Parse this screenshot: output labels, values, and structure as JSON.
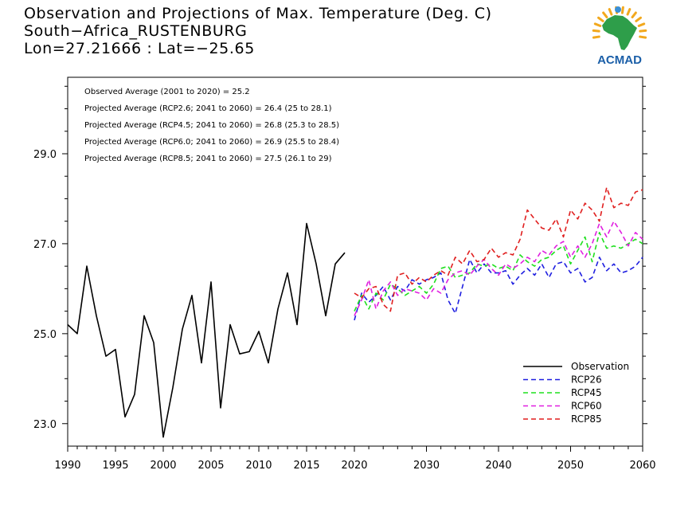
{
  "header": {
    "title_line1": "Observation and Projections of Max. Temperature (Deg. C)",
    "title_line2": "South−Africa_RUSTENBURG",
    "title_line3": "Lon=27.21666 : Lat=−25.65"
  },
  "logo": {
    "text": "ACMAD",
    "colors": {
      "africa": "#2e9e4a",
      "sun": "#f2a81d",
      "text": "#1b5fa8"
    }
  },
  "stats": [
    "Observed Average (2001 to 2020) = 25.2",
    "Projected Average (RCP2.6; 2041 to 2060) = 26.4 (25 to 28.1)",
    "Projected Average (RCP4.5; 2041 to 2060) = 26.8 (25.3 to 28.5)",
    "Projected Average (RCP6.0; 2041 to 2060) = 26.9 (25.5 to 28.4)",
    "Projected Average (RCP8.5; 2041 to 2060) = 27.5 (26.1 to 29)"
  ],
  "chart_data": {
    "type": "line",
    "title": "Observation and Projections of Max. Temperature (Deg. C)",
    "xlim": [
      1990,
      2060
    ],
    "ylim": [
      22.5,
      30.7
    ],
    "x_axis_breaks": {
      "segment1": [
        1990,
        2020
      ],
      "segment2": [
        2020,
        2060
      ]
    },
    "x_ticks": [
      1990,
      1995,
      2000,
      2005,
      2010,
      2015,
      2020,
      2030,
      2040,
      2050,
      2060
    ],
    "y_ticks": [
      23.0,
      25.0,
      27.0,
      29.0
    ],
    "y_tick_labels": [
      "23.0",
      "25.0",
      "27.0",
      "29.0"
    ],
    "legend_position": "lower-right",
    "series": [
      {
        "name": "Observation",
        "color": "#000000",
        "dash": "solid",
        "x": [
          1990,
          1991,
          1992,
          1993,
          1994,
          1995,
          1996,
          1997,
          1998,
          1999,
          2000,
          2001,
          2002,
          2003,
          2004,
          2005,
          2006,
          2007,
          2008,
          2009,
          2010,
          2011,
          2012,
          2013,
          2014,
          2015,
          2016,
          2017,
          2018,
          2019
        ],
        "y": [
          25.2,
          25.0,
          26.5,
          25.4,
          24.5,
          24.65,
          23.15,
          23.65,
          25.4,
          24.8,
          22.7,
          23.8,
          25.1,
          25.85,
          24.35,
          26.15,
          23.35,
          25.2,
          24.55,
          24.6,
          25.05,
          24.35,
          25.55,
          26.35,
          25.2,
          27.45,
          26.55,
          25.4,
          26.55,
          26.8
        ]
      },
      {
        "name": "RCP26",
        "color": "#1f1fe0",
        "dash": "dashed",
        "x": [
          2020,
          2021,
          2022,
          2023,
          2024,
          2025,
          2026,
          2027,
          2028,
          2029,
          2030,
          2031,
          2032,
          2033,
          2034,
          2035,
          2036,
          2037,
          2038,
          2039,
          2040,
          2041,
          2042,
          2043,
          2044,
          2045,
          2046,
          2047,
          2048,
          2049,
          2050,
          2051,
          2052,
          2053,
          2054,
          2055,
          2056,
          2057,
          2058,
          2059,
          2060
        ],
        "y": [
          25.3,
          25.9,
          25.7,
          25.85,
          26.05,
          25.75,
          26.05,
          25.95,
          26.2,
          26.1,
          26.2,
          26.25,
          26.35,
          25.75,
          25.45,
          26.05,
          26.65,
          26.35,
          26.55,
          26.35,
          26.35,
          26.4,
          26.1,
          26.3,
          26.45,
          26.3,
          26.55,
          26.25,
          26.55,
          26.6,
          26.35,
          26.45,
          26.15,
          26.25,
          26.7,
          26.4,
          26.55,
          26.35,
          26.4,
          26.5,
          26.7
        ]
      },
      {
        "name": "RCP45",
        "color": "#1fe01f",
        "dash": "dashed",
        "x": [
          2020,
          2021,
          2022,
          2023,
          2024,
          2025,
          2026,
          2027,
          2028,
          2029,
          2030,
          2031,
          2032,
          2033,
          2034,
          2035,
          2036,
          2037,
          2038,
          2039,
          2040,
          2041,
          2042,
          2043,
          2044,
          2045,
          2046,
          2047,
          2048,
          2049,
          2050,
          2051,
          2052,
          2053,
          2054,
          2055,
          2056,
          2057,
          2058,
          2059,
          2060
        ],
        "y": [
          25.5,
          25.85,
          25.55,
          25.9,
          25.75,
          26.1,
          26.0,
          25.85,
          25.95,
          26.05,
          25.9,
          26.1,
          26.45,
          26.5,
          26.25,
          26.3,
          26.35,
          26.55,
          26.5,
          26.55,
          26.45,
          26.5,
          26.4,
          26.75,
          26.6,
          26.5,
          26.65,
          26.7,
          26.85,
          26.95,
          26.55,
          26.85,
          27.15,
          26.6,
          27.25,
          26.9,
          26.95,
          26.9,
          27.0,
          27.1,
          27.0
        ]
      },
      {
        "name": "RCP60",
        "color": "#e01fe0",
        "dash": "dashed",
        "x": [
          2020,
          2021,
          2022,
          2023,
          2024,
          2025,
          2026,
          2027,
          2028,
          2029,
          2030,
          2031,
          2032,
          2033,
          2034,
          2035,
          2036,
          2037,
          2038,
          2039,
          2040,
          2041,
          2042,
          2043,
          2044,
          2045,
          2046,
          2047,
          2048,
          2049,
          2050,
          2051,
          2052,
          2053,
          2054,
          2055,
          2056,
          2057,
          2058,
          2059,
          2060
        ],
        "y": [
          25.4,
          25.75,
          26.2,
          25.55,
          25.95,
          26.15,
          25.85,
          26.0,
          25.95,
          25.9,
          25.75,
          26.0,
          25.9,
          26.2,
          26.35,
          26.4,
          26.3,
          26.5,
          26.65,
          26.45,
          26.3,
          26.55,
          26.45,
          26.55,
          26.7,
          26.6,
          26.85,
          26.75,
          26.95,
          27.05,
          26.7,
          26.95,
          26.7,
          27.0,
          27.45,
          27.15,
          27.5,
          27.25,
          26.95,
          27.25,
          27.1
        ]
      },
      {
        "name": "RCP85",
        "color": "#e01f1f",
        "dash": "dashed",
        "x": [
          2020,
          2021,
          2022,
          2023,
          2024,
          2025,
          2026,
          2027,
          2028,
          2029,
          2030,
          2031,
          2032,
          2033,
          2034,
          2035,
          2036,
          2037,
          2038,
          2039,
          2040,
          2041,
          2042,
          2043,
          2044,
          2045,
          2046,
          2047,
          2048,
          2049,
          2050,
          2051,
          2052,
          2053,
          2054,
          2055,
          2056,
          2057,
          2058,
          2059,
          2060
        ],
        "y": [
          25.9,
          25.8,
          26.0,
          26.05,
          25.65,
          25.5,
          26.3,
          26.35,
          26.1,
          26.25,
          26.15,
          26.3,
          26.4,
          26.3,
          26.7,
          26.55,
          26.85,
          26.6,
          26.65,
          26.9,
          26.7,
          26.8,
          26.75,
          27.1,
          27.75,
          27.55,
          27.35,
          27.3,
          27.55,
          27.15,
          27.75,
          27.55,
          27.9,
          27.75,
          27.5,
          28.25,
          27.8,
          27.9,
          27.85,
          28.15,
          28.2
        ]
      }
    ]
  }
}
